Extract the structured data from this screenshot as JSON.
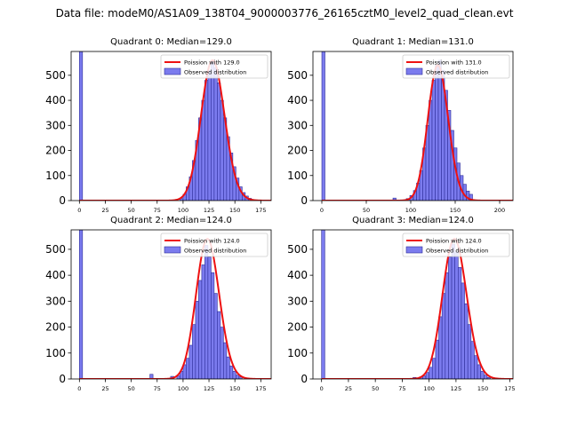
{
  "figure": {
    "suptitle": "Data file: modeM0/AS1A09_138T04_9000003776_26165cztM0_level2_quad_clean.evt"
  },
  "colors": {
    "hist_fill": "#7b7bee",
    "hist_edge": "#2e2e9a",
    "poisson_line": "#ee1111",
    "axis": "#000000"
  },
  "legend": {
    "observed_label": "Observed distribution"
  },
  "chart_data": [
    {
      "type": "bar",
      "title": "Quadrant 0: Median=129.0",
      "legend_line": "Poission with 129.0",
      "legend_position": "top-right",
      "xlim": [
        -8,
        185
      ],
      "ylim": [
        0,
        595
      ],
      "xticks": [
        0,
        25,
        50,
        75,
        100,
        125,
        150,
        175
      ],
      "yticks": [
        0,
        100,
        200,
        300,
        400,
        500
      ],
      "bin_width": 3,
      "bins": [
        {
          "x": 0,
          "y": 595
        },
        {
          "x": 97,
          "y": 8
        },
        {
          "x": 100,
          "y": 25
        },
        {
          "x": 103,
          "y": 55
        },
        {
          "x": 106,
          "y": 95
        },
        {
          "x": 109,
          "y": 160
        },
        {
          "x": 112,
          "y": 240
        },
        {
          "x": 115,
          "y": 330
        },
        {
          "x": 118,
          "y": 400
        },
        {
          "x": 121,
          "y": 480
        },
        {
          "x": 124,
          "y": 520
        },
        {
          "x": 127,
          "y": 555
        },
        {
          "x": 130,
          "y": 530
        },
        {
          "x": 133,
          "y": 470
        },
        {
          "x": 136,
          "y": 400
        },
        {
          "x": 139,
          "y": 330
        },
        {
          "x": 142,
          "y": 255
        },
        {
          "x": 145,
          "y": 190
        },
        {
          "x": 148,
          "y": 135
        },
        {
          "x": 151,
          "y": 90
        },
        {
          "x": 154,
          "y": 55
        },
        {
          "x": 157,
          "y": 32
        },
        {
          "x": 160,
          "y": 18
        },
        {
          "x": 163,
          "y": 9
        },
        {
          "x": 166,
          "y": 4
        }
      ],
      "poisson_mean": 129.0,
      "poisson_peak": 560
    },
    {
      "type": "bar",
      "title": "Quadrant 1: Median=131.0",
      "legend_line": "Poission with 131.0",
      "legend_position": "top-right",
      "xlim": [
        -10,
        215
      ],
      "ylim": [
        0,
        595
      ],
      "xticks": [
        0,
        50,
        100,
        150,
        200
      ],
      "yticks": [
        0,
        100,
        200,
        300,
        400,
        500
      ],
      "bin_width": 3.5,
      "bins": [
        {
          "x": 0,
          "y": 595
        },
        {
          "x": 80,
          "y": 10
        },
        {
          "x": 95,
          "y": 8
        },
        {
          "x": 99,
          "y": 20
        },
        {
          "x": 103,
          "y": 40
        },
        {
          "x": 106.5,
          "y": 70
        },
        {
          "x": 110,
          "y": 120
        },
        {
          "x": 113.5,
          "y": 210
        },
        {
          "x": 117,
          "y": 300
        },
        {
          "x": 120.5,
          "y": 400
        },
        {
          "x": 124,
          "y": 480
        },
        {
          "x": 127.5,
          "y": 540
        },
        {
          "x": 131,
          "y": 560
        },
        {
          "x": 134.5,
          "y": 520
        },
        {
          "x": 138,
          "y": 440
        },
        {
          "x": 141.5,
          "y": 360
        },
        {
          "x": 145,
          "y": 280
        },
        {
          "x": 148.5,
          "y": 210
        },
        {
          "x": 152,
          "y": 150
        },
        {
          "x": 155.5,
          "y": 100
        },
        {
          "x": 159,
          "y": 65
        },
        {
          "x": 162.5,
          "y": 38
        },
        {
          "x": 166,
          "y": 25
        }
      ],
      "poisson_mean": 131.0,
      "poisson_peak": 540
    },
    {
      "type": "bar",
      "title": "Quadrant 2: Median=124.0",
      "legend_line": "Poission with 124.0",
      "legend_position": "top-right",
      "xlim": [
        -8,
        185
      ],
      "ylim": [
        0,
        575
      ],
      "xticks": [
        0,
        25,
        50,
        75,
        100,
        125,
        150,
        175
      ],
      "yticks": [
        0,
        100,
        200,
        300,
        400,
        500
      ],
      "bin_width": 3,
      "bins": [
        {
          "x": 0,
          "y": 575
        },
        {
          "x": 68,
          "y": 18
        },
        {
          "x": 88,
          "y": 10
        },
        {
          "x": 94,
          "y": 12
        },
        {
          "x": 97,
          "y": 30
        },
        {
          "x": 100,
          "y": 55
        },
        {
          "x": 103,
          "y": 80
        },
        {
          "x": 106,
          "y": 130
        },
        {
          "x": 109,
          "y": 210
        },
        {
          "x": 112,
          "y": 300
        },
        {
          "x": 115,
          "y": 380
        },
        {
          "x": 118,
          "y": 440
        },
        {
          "x": 121,
          "y": 515
        },
        {
          "x": 124,
          "y": 470
        },
        {
          "x": 127,
          "y": 410
        },
        {
          "x": 130,
          "y": 330
        },
        {
          "x": 133,
          "y": 260
        },
        {
          "x": 136,
          "y": 200
        },
        {
          "x": 139,
          "y": 140
        },
        {
          "x": 142,
          "y": 85
        },
        {
          "x": 145,
          "y": 50
        },
        {
          "x": 148,
          "y": 30
        },
        {
          "x": 151,
          "y": 15
        },
        {
          "x": 154,
          "y": 8
        }
      ],
      "poisson_mean": 124.0,
      "poisson_peak": 540
    },
    {
      "type": "bar",
      "title": "Quadrant 3: Median=124.0",
      "legend_line": "Poission with 124.0",
      "legend_position": "top-right",
      "xlim": [
        -8,
        178
      ],
      "ylim": [
        0,
        575
      ],
      "xticks": [
        0,
        25,
        50,
        75,
        100,
        125,
        150,
        175
      ],
      "yticks": [
        0,
        100,
        200,
        300,
        400,
        500
      ],
      "bin_width": 3,
      "bins": [
        {
          "x": 0,
          "y": 575
        },
        {
          "x": 85,
          "y": 6
        },
        {
          "x": 91,
          "y": 8
        },
        {
          "x": 94,
          "y": 12
        },
        {
          "x": 97,
          "y": 25
        },
        {
          "x": 100,
          "y": 45
        },
        {
          "x": 103,
          "y": 80
        },
        {
          "x": 106,
          "y": 150
        },
        {
          "x": 109,
          "y": 240
        },
        {
          "x": 112,
          "y": 330
        },
        {
          "x": 115,
          "y": 410
        },
        {
          "x": 118,
          "y": 470
        },
        {
          "x": 121,
          "y": 520
        },
        {
          "x": 124,
          "y": 490
        },
        {
          "x": 127,
          "y": 430
        },
        {
          "x": 130,
          "y": 370
        },
        {
          "x": 133,
          "y": 290
        },
        {
          "x": 136,
          "y": 210
        },
        {
          "x": 139,
          "y": 145
        },
        {
          "x": 142,
          "y": 90
        },
        {
          "x": 145,
          "y": 55
        },
        {
          "x": 148,
          "y": 30
        },
        {
          "x": 151,
          "y": 15
        },
        {
          "x": 154,
          "y": 6
        }
      ],
      "poisson_mean": 124.0,
      "poisson_peak": 540
    }
  ]
}
